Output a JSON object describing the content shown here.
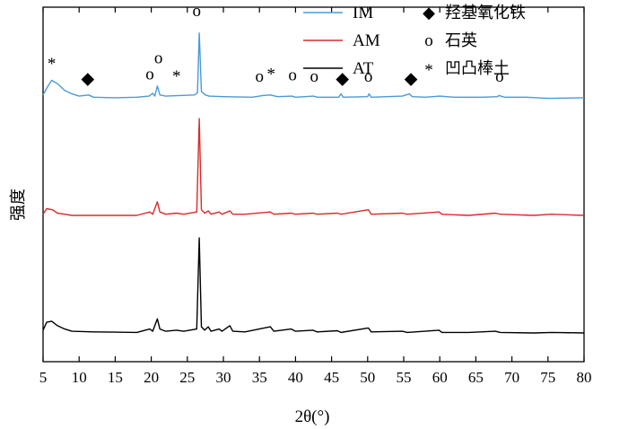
{
  "chart_data": {
    "type": "line",
    "xlabel": "2θ(°)",
    "ylabel": "强度",
    "xlim": [
      5,
      80
    ],
    "x_ticks": [
      5,
      10,
      15,
      20,
      25,
      30,
      35,
      40,
      45,
      50,
      55,
      60,
      65,
      70,
      75,
      80
    ],
    "y_ticks_shown": false,
    "series": [
      {
        "name": "IM",
        "color": "#4a9ad8",
        "baseline": 2.35,
        "points": [
          [
            5,
            2.37
          ],
          [
            5.6,
            2.44
          ],
          [
            6.2,
            2.5
          ],
          [
            7,
            2.47
          ],
          [
            8,
            2.41
          ],
          [
            9,
            2.38
          ],
          [
            10,
            2.36
          ],
          [
            11.3,
            2.37
          ],
          [
            12,
            2.35
          ],
          [
            15,
            2.345
          ],
          [
            18,
            2.35
          ],
          [
            19.7,
            2.36
          ],
          [
            20.2,
            2.385
          ],
          [
            20.5,
            2.36
          ],
          [
            20.85,
            2.45
          ],
          [
            21.2,
            2.37
          ],
          [
            22,
            2.36
          ],
          [
            24,
            2.365
          ],
          [
            26,
            2.37
          ],
          [
            26.4,
            2.39
          ],
          [
            26.65,
            2.92
          ],
          [
            26.95,
            2.4
          ],
          [
            27.5,
            2.37
          ],
          [
            28,
            2.36
          ],
          [
            30,
            2.355
          ],
          [
            34,
            2.35
          ],
          [
            35.5,
            2.365
          ],
          [
            36.5,
            2.37
          ],
          [
            37.5,
            2.355
          ],
          [
            39.5,
            2.36
          ],
          [
            40,
            2.35
          ],
          [
            42.5,
            2.36
          ],
          [
            43,
            2.35
          ],
          [
            46,
            2.35
          ],
          [
            46.3,
            2.38
          ],
          [
            46.6,
            2.35
          ],
          [
            50,
            2.355
          ],
          [
            50.2,
            2.38
          ],
          [
            50.5,
            2.35
          ],
          [
            54.8,
            2.36
          ],
          [
            55.8,
            2.38
          ],
          [
            56.2,
            2.355
          ],
          [
            58,
            2.35
          ],
          [
            60,
            2.36
          ],
          [
            62,
            2.35
          ],
          [
            66,
            2.35
          ],
          [
            68,
            2.355
          ],
          [
            68.2,
            2.365
          ],
          [
            69,
            2.35
          ],
          [
            72,
            2.35
          ],
          [
            75,
            2.34
          ],
          [
            80,
            2.345
          ]
        ]
      },
      {
        "name": "AM",
        "color": "#d92b2b",
        "baseline": 1.3,
        "points": [
          [
            5,
            1.31
          ],
          [
            5.5,
            1.36
          ],
          [
            6.3,
            1.35
          ],
          [
            7,
            1.32
          ],
          [
            8,
            1.31
          ],
          [
            9,
            1.3
          ],
          [
            12,
            1.3
          ],
          [
            18,
            1.3
          ],
          [
            19.8,
            1.33
          ],
          [
            20.2,
            1.31
          ],
          [
            20.85,
            1.42
          ],
          [
            21.2,
            1.33
          ],
          [
            22,
            1.31
          ],
          [
            23.5,
            1.32
          ],
          [
            24.5,
            1.31
          ],
          [
            26.3,
            1.33
          ],
          [
            26.65,
            2.16
          ],
          [
            26.95,
            1.35
          ],
          [
            27.4,
            1.32
          ],
          [
            27.9,
            1.34
          ],
          [
            28.3,
            1.31
          ],
          [
            29.4,
            1.33
          ],
          [
            29.8,
            1.31
          ],
          [
            30.9,
            1.34
          ],
          [
            31.3,
            1.31
          ],
          [
            33,
            1.31
          ],
          [
            36.5,
            1.33
          ],
          [
            37,
            1.31
          ],
          [
            39.4,
            1.32
          ],
          [
            40,
            1.31
          ],
          [
            42.4,
            1.32
          ],
          [
            43,
            1.31
          ],
          [
            45.8,
            1.32
          ],
          [
            46.3,
            1.31
          ],
          [
            50.1,
            1.35
          ],
          [
            50.5,
            1.31
          ],
          [
            54.8,
            1.32
          ],
          [
            55.5,
            1.31
          ],
          [
            59.9,
            1.33
          ],
          [
            60.3,
            1.31
          ],
          [
            64,
            1.3
          ],
          [
            67.7,
            1.32
          ],
          [
            68.4,
            1.31
          ],
          [
            73,
            1.3
          ],
          [
            75.5,
            1.31
          ],
          [
            80,
            1.3
          ]
        ]
      },
      {
        "name": "AT",
        "color": "#000000",
        "baseline": 0.26,
        "points": [
          [
            5,
            0.28
          ],
          [
            5.5,
            0.35
          ],
          [
            6.2,
            0.36
          ],
          [
            7,
            0.32
          ],
          [
            8,
            0.29
          ],
          [
            9,
            0.27
          ],
          [
            12,
            0.265
          ],
          [
            18,
            0.26
          ],
          [
            19.8,
            0.29
          ],
          [
            20.2,
            0.27
          ],
          [
            20.85,
            0.38
          ],
          [
            21.2,
            0.29
          ],
          [
            22,
            0.27
          ],
          [
            23.5,
            0.28
          ],
          [
            24.5,
            0.27
          ],
          [
            26.3,
            0.29
          ],
          [
            26.65,
            1.1
          ],
          [
            26.95,
            0.31
          ],
          [
            27.4,
            0.28
          ],
          [
            27.9,
            0.31
          ],
          [
            28.3,
            0.27
          ],
          [
            29.4,
            0.29
          ],
          [
            29.8,
            0.27
          ],
          [
            30.9,
            0.32
          ],
          [
            31.3,
            0.27
          ],
          [
            33,
            0.265
          ],
          [
            36.5,
            0.31
          ],
          [
            37,
            0.27
          ],
          [
            39.4,
            0.29
          ],
          [
            40,
            0.27
          ],
          [
            42.4,
            0.28
          ],
          [
            43,
            0.265
          ],
          [
            45.8,
            0.275
          ],
          [
            46.3,
            0.26
          ],
          [
            50.1,
            0.3
          ],
          [
            50.5,
            0.265
          ],
          [
            54.8,
            0.27
          ],
          [
            55.5,
            0.26
          ],
          [
            59.9,
            0.28
          ],
          [
            60.3,
            0.26
          ],
          [
            64,
            0.26
          ],
          [
            67.7,
            0.27
          ],
          [
            68.4,
            0.26
          ],
          [
            73,
            0.255
          ],
          [
            75.5,
            0.26
          ],
          [
            80,
            0.255
          ]
        ]
      }
    ],
    "peak_markers": [
      {
        "symbol": "*",
        "x": 6.2,
        "y": 2.6
      },
      {
        "symbol": "◆",
        "x": 11.2,
        "y": 2.47
      },
      {
        "symbol": "o",
        "x": 19.8,
        "y": 2.51
      },
      {
        "symbol": "o",
        "x": 21.0,
        "y": 2.65
      },
      {
        "symbol": "*",
        "x": 23.5,
        "y": 2.49
      },
      {
        "symbol": "o",
        "x": 26.3,
        "y": 3.07
      },
      {
        "symbol": "o",
        "x": 35.0,
        "y": 2.49
      },
      {
        "symbol": "*",
        "x": 36.6,
        "y": 2.51
      },
      {
        "symbol": "o",
        "x": 39.6,
        "y": 2.5
      },
      {
        "symbol": "o",
        "x": 42.6,
        "y": 2.49
      },
      {
        "symbol": "◆",
        "x": 46.5,
        "y": 2.47
      },
      {
        "symbol": "o",
        "x": 50.1,
        "y": 2.49
      },
      {
        "symbol": "◆",
        "x": 56.0,
        "y": 2.47
      },
      {
        "symbol": "o",
        "x": 68.3,
        "y": 2.49
      }
    ],
    "legend": {
      "placement": "top-right",
      "lines": [
        {
          "label": "IM",
          "color": "#4a9ad8"
        },
        {
          "label": "AM",
          "color": "#d92b2b"
        },
        {
          "label": "AT",
          "color": "#000000"
        }
      ],
      "symbols": [
        {
          "symbol": "◆",
          "label": "羟基氧化铁"
        },
        {
          "symbol": "o",
          "label": "石英"
        },
        {
          "symbol": "*",
          "label": "凹凸棒土"
        }
      ]
    }
  }
}
